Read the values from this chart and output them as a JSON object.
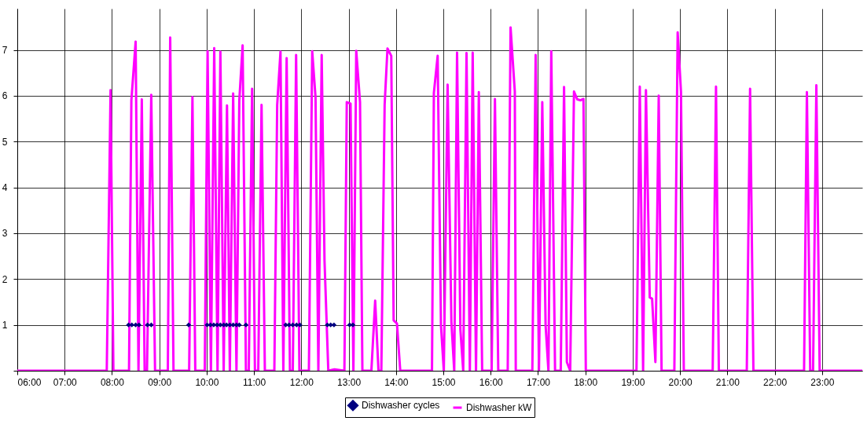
{
  "chart_data": {
    "type": "line",
    "xlim": [
      6,
      23.85
    ],
    "ylim": [
      0,
      7.9
    ],
    "xticks": [
      {
        "value": 6,
        "label": "06:00"
      },
      {
        "value": 7,
        "label": "07:00"
      },
      {
        "value": 8,
        "label": "08:00"
      },
      {
        "value": 9,
        "label": "09:00"
      },
      {
        "value": 10,
        "label": "10:00"
      },
      {
        "value": 11,
        "label": "11:00"
      },
      {
        "value": 12,
        "label": "12:00"
      },
      {
        "value": 13,
        "label": "13:00"
      },
      {
        "value": 14,
        "label": "14:00"
      },
      {
        "value": 15,
        "label": "15:00"
      },
      {
        "value": 16,
        "label": "16:00"
      },
      {
        "value": 17,
        "label": "17:00"
      },
      {
        "value": 18,
        "label": "18:00"
      },
      {
        "value": 19,
        "label": "19:00"
      },
      {
        "value": 20,
        "label": "20:00"
      },
      {
        "value": 21,
        "label": "21:00"
      },
      {
        "value": 22,
        "label": "22:00"
      },
      {
        "value": 23,
        "label": "23:00"
      }
    ],
    "yticks": [
      {
        "value": 0,
        "label": null
      },
      1,
      2,
      3,
      4,
      5,
      6,
      7
    ],
    "grid": true,
    "legend": "bottom",
    "line_style": "solid",
    "series": [
      {
        "name": "Dishwasher cycles",
        "type": "scatter",
        "marker": "diamond",
        "color": "#000080",
        "x": [
          8.35,
          8.42,
          8.5,
          8.57,
          8.75,
          8.83,
          9.62,
          10.01,
          10.08,
          10.15,
          10.22,
          10.29,
          10.36,
          10.42,
          10.49,
          10.56,
          10.63,
          10.69,
          10.83,
          11.67,
          11.74,
          11.82,
          11.9,
          11.97,
          12.55,
          12.62,
          12.69,
          13.02,
          13.09
        ],
        "values": [
          1,
          1,
          1,
          1,
          1,
          1,
          1,
          1,
          1,
          1,
          1,
          1,
          1,
          1,
          1,
          1,
          1,
          1,
          1,
          1,
          1,
          1,
          1,
          1,
          1,
          1,
          1,
          1,
          1
        ]
      },
      {
        "name": "Dishwasher kW",
        "type": "line",
        "color": "#ff00ff",
        "x": [
          6,
          7.89,
          7.97,
          8.03,
          8.36,
          8.41,
          8.5,
          8.56,
          8.63,
          8.69,
          8.74,
          8.83,
          8.91,
          9.18,
          9.23,
          9.3,
          9.63,
          9.7,
          9.76,
          9.96,
          10.02,
          10.09,
          10.16,
          10.23,
          10.29,
          10.36,
          10.43,
          10.49,
          10.56,
          10.63,
          10.69,
          10.76,
          10.83,
          10.89,
          10.96,
          11.02,
          11.09,
          11.16,
          11.23,
          11.43,
          11.49,
          11.56,
          11.62,
          11.69,
          11.76,
          11.82,
          11.89,
          11.96,
          12.16,
          12.23,
          12.3,
          12.36,
          12.43,
          12.49,
          12.57,
          12.7,
          12.91,
          12.96,
          13.04,
          13.1,
          13.16,
          13.24,
          13.29,
          13.48,
          13.56,
          13.63,
          13.69,
          13.76,
          13.82,
          13.9,
          13.95,
          14.02,
          14.09,
          14.76,
          14.8,
          14.88,
          14.95,
          15.01,
          15.09,
          15.17,
          15.23,
          15.29,
          15.36,
          15.42,
          15.49,
          15.56,
          15.62,
          15.69,
          15.75,
          15.82,
          16.02,
          16.09,
          16.16,
          16.36,
          16.42,
          16.51,
          16.53,
          16.88,
          16.95,
          17.02,
          17.09,
          17.16,
          17.22,
          17.28,
          17.36,
          17.48,
          17.55,
          17.61,
          17.68,
          17.76,
          17.83,
          17.9,
          17.96,
          18.01,
          19.08,
          19.15,
          19.22,
          19.28,
          19.36,
          19.41,
          19.48,
          19.55,
          19.61,
          19.88,
          19.95,
          20.02,
          20.08,
          20.69,
          20.76,
          20.82,
          21.41,
          21.48,
          21.55,
          22.62,
          22.68,
          22.75,
          22.81,
          22.88,
          22.95,
          23.85
        ],
        "values": [
          0,
          0,
          6.12,
          0,
          0,
          5.9,
          7.18,
          0,
          5.92,
          0,
          0,
          6.02,
          0,
          0,
          7.27,
          0,
          0,
          5.97,
          0,
          0,
          6.97,
          0,
          7.04,
          0,
          6.96,
          0,
          5.79,
          0,
          6.05,
          0,
          5.9,
          7.1,
          0,
          0,
          6.15,
          0,
          0,
          5.8,
          0,
          0,
          5.8,
          6.96,
          0,
          6.82,
          0,
          0,
          6.89,
          0,
          0,
          6.97,
          5.97,
          0,
          6.89,
          2.4,
          0,
          0.03,
          0,
          5.86,
          5.83,
          0,
          6.98,
          5.86,
          0,
          0,
          1.53,
          0,
          0,
          5.8,
          7.03,
          6.87,
          1.1,
          1.03,
          0,
          0,
          6.06,
          6.87,
          0.99,
          0,
          6.24,
          1.07,
          0,
          6.94,
          0.9,
          0,
          6.93,
          0,
          6.94,
          0,
          6.08,
          0,
          0,
          5.93,
          0,
          0,
          7.49,
          6.09,
          0,
          0,
          6.89,
          0,
          5.86,
          0.99,
          0,
          6.97,
          0,
          0,
          6.19,
          0.19,
          0,
          6.09,
          5.92,
          5.9,
          5.93,
          0,
          0,
          6.2,
          0,
          6.12,
          1.6,
          1.57,
          0.19,
          6.0,
          0,
          0,
          7.38,
          6.09,
          0,
          0,
          6.2,
          0,
          0,
          6.15,
          0,
          0,
          6.08,
          0,
          0,
          6.23,
          0,
          0
        ]
      }
    ]
  }
}
